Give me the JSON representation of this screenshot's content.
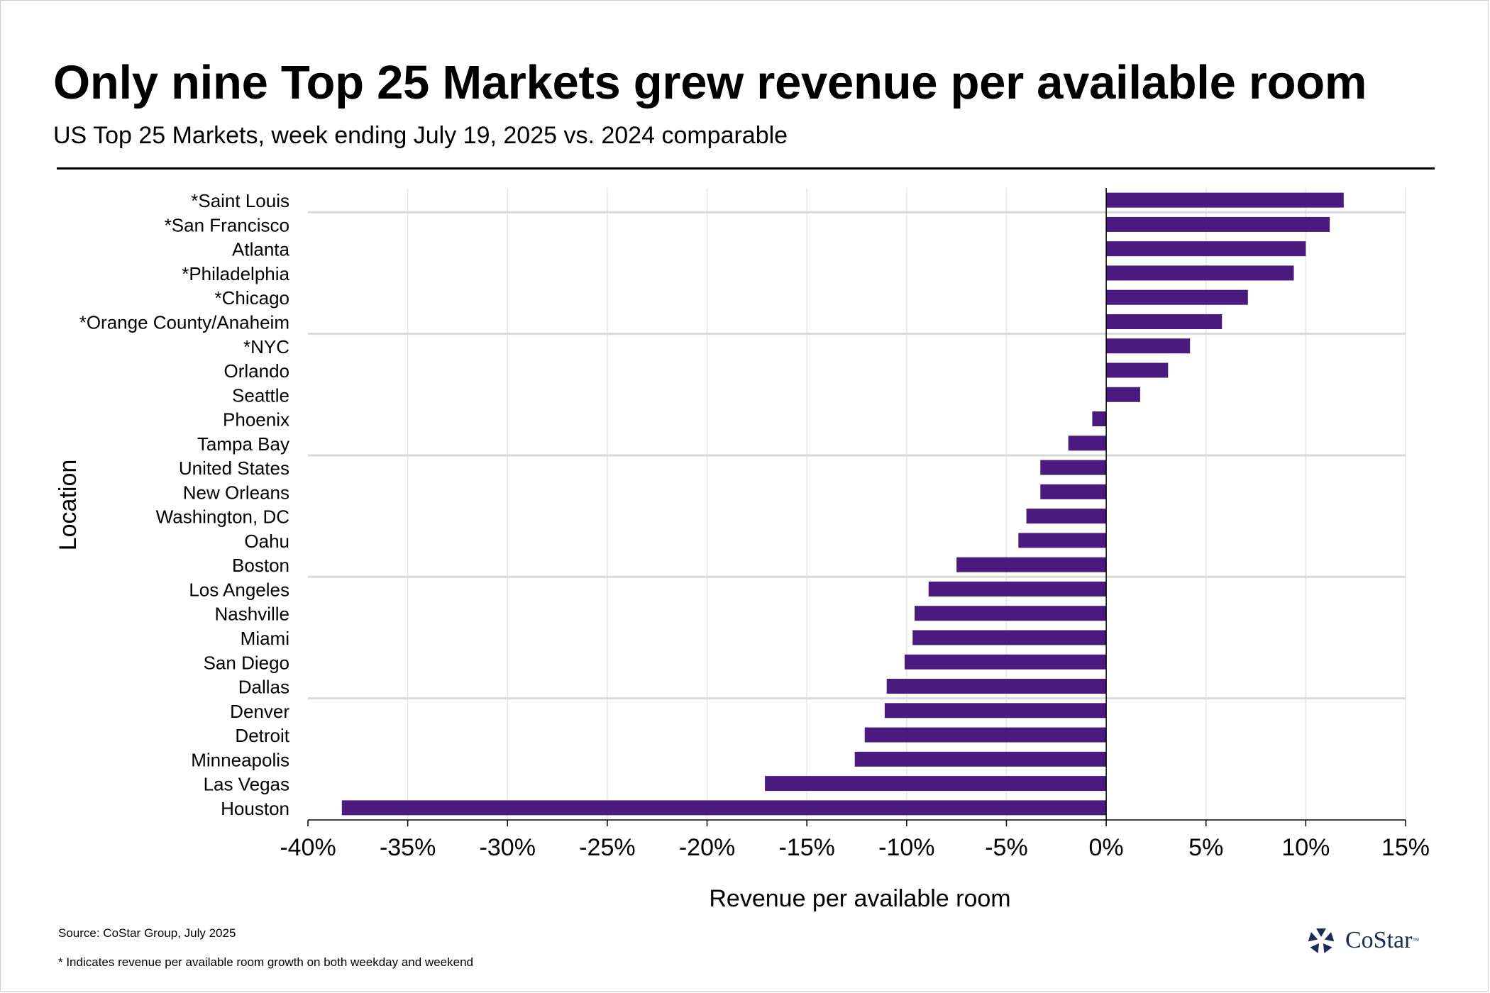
{
  "title": "Only nine Top 25 Markets grew revenue per available room",
  "subtitle": "US Top 25 Markets, week ending July 19, 2025 vs. 2024 comparable",
  "source_note": "Source: CoStar Group, July 2025",
  "asterisk_note": "* Indicates revenue per available room growth on both weekday and weekend",
  "brand": {
    "name": "CoStar",
    "tm": "™",
    "logo_icon": "costar-star-logo"
  },
  "colors": {
    "bar": "#4a1a7e",
    "grid": "#e6e6e6",
    "group_separator": "#d9d9d9",
    "axis": "#000000",
    "brand": "#1b2a57"
  },
  "chart_data": {
    "type": "bar",
    "orientation": "horizontal",
    "title": "Only nine Top 25 Markets grew revenue per available room",
    "subtitle": "US Top 25 Markets, week ending July 19, 2025 vs. 2024 comparable",
    "xlabel": "Revenue per available room",
    "ylabel": "Location",
    "xlim": [
      -40,
      15
    ],
    "x_ticks": [
      -40,
      -35,
      -30,
      -25,
      -20,
      -15,
      -10,
      -5,
      0,
      5,
      10,
      15
    ],
    "x_tick_labels": [
      "-40%",
      "-35%",
      "-30%",
      "-25%",
      "-20%",
      "-15%",
      "-10%",
      "-5%",
      "0%",
      "5%",
      "10%",
      "15%"
    ],
    "grid": true,
    "legend": "none",
    "categories": [
      "*Saint Louis",
      "*San Francisco",
      "Atlanta",
      "*Philadelphia",
      "*Chicago",
      "*Orange County/Anaheim",
      "*NYC",
      "Orlando",
      "Seattle",
      "Phoenix",
      "Tampa Bay",
      "United States",
      "New Orleans",
      "Washington, DC",
      "Oahu",
      "Boston",
      "Los Angeles",
      "Nashville",
      "Miami",
      "San Diego",
      "Dallas",
      "Denver",
      "Detroit",
      "Minneapolis",
      "Las Vegas",
      "Houston"
    ],
    "values": [
      11.9,
      11.2,
      10.0,
      9.4,
      7.1,
      5.8,
      4.2,
      3.1,
      1.7,
      -0.7,
      -1.9,
      -3.3,
      -3.3,
      -4.0,
      -4.4,
      -7.5,
      -8.9,
      -9.6,
      -9.7,
      -10.1,
      -11.0,
      -11.1,
      -12.1,
      -12.6,
      -17.1,
      -38.3
    ]
  }
}
